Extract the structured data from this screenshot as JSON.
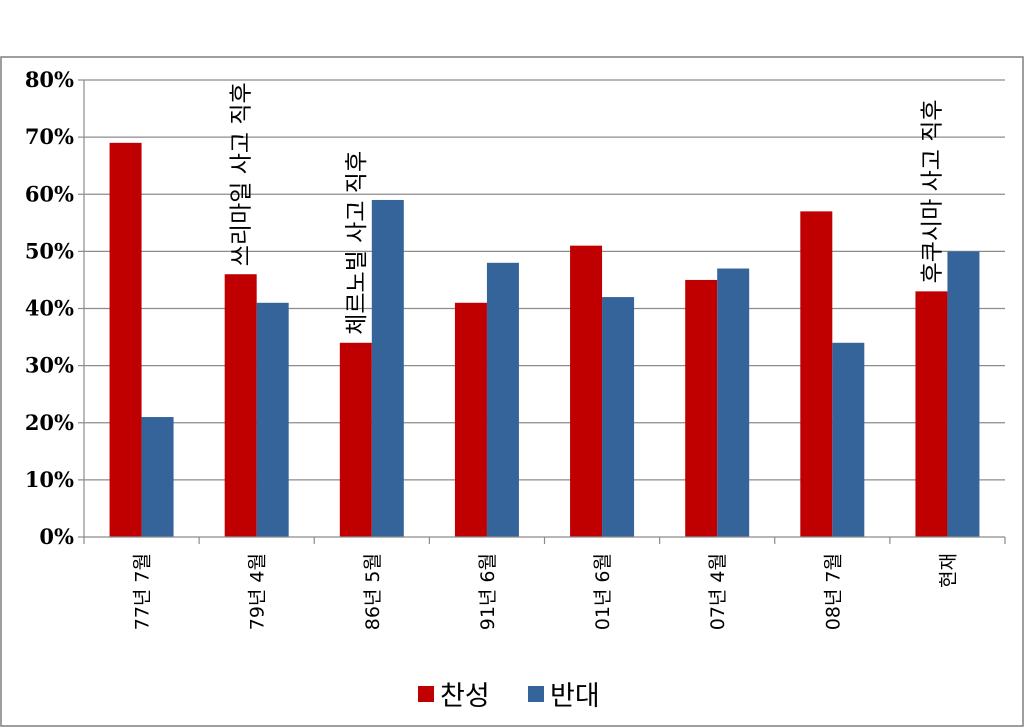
{
  "chart_data": {
    "type": "bar",
    "categories": [
      "77년 7월",
      "79년 4월",
      "86년 5월",
      "91년 6월",
      "01년 6월",
      "07년 4월",
      "08년 7월",
      "현재"
    ],
    "series": [
      {
        "name": "찬성",
        "color": "#c00000",
        "values": [
          69,
          46,
          34,
          41,
          51,
          45,
          57,
          43
        ]
      },
      {
        "name": "반대",
        "color": "#35649a",
        "values": [
          21,
          41,
          59,
          48,
          42,
          47,
          34,
          50
        ]
      }
    ],
    "y_tick_labels": [
      "0%",
      "10%",
      "20%",
      "30%",
      "40%",
      "50%",
      "60%",
      "70%",
      "80%"
    ],
    "ylim": [
      0,
      80
    ],
    "y_unit": "%",
    "grid": true,
    "legend_position": "bottom",
    "annotations": [
      {
        "category_index": 1,
        "text": "쓰리마일 사고 직후"
      },
      {
        "category_index": 2,
        "text": "체르노빌 사고 직후"
      },
      {
        "category_index": 7,
        "text": "후쿠시마 사고 직후"
      }
    ],
    "title": "",
    "xlabel": "",
    "ylabel": ""
  }
}
